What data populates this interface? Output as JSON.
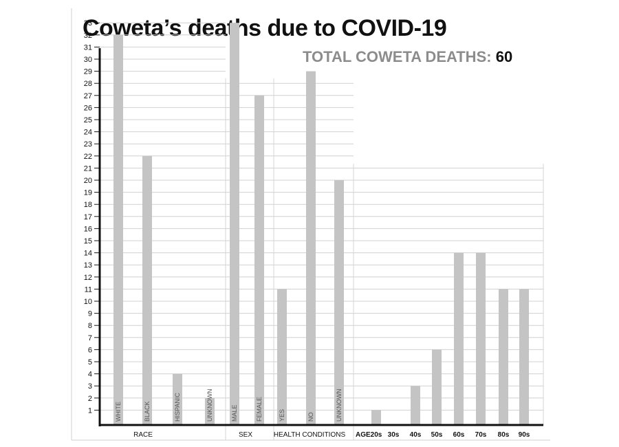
{
  "chart_data": {
    "type": "bar",
    "title": "Coweta’s deaths due to COVID-19",
    "annotation": {
      "label": "TOTAL COWETA DEATHS:",
      "value": "60"
    },
    "xlabel": "",
    "ylabel": "",
    "ylim": [
      0,
      33
    ],
    "yticks": [
      1,
      2,
      3,
      4,
      5,
      6,
      7,
      8,
      9,
      10,
      11,
      12,
      13,
      14,
      15,
      16,
      17,
      18,
      19,
      20,
      21,
      22,
      23,
      24,
      25,
      26,
      27,
      28,
      29,
      30,
      31,
      32,
      33
    ],
    "grid": true,
    "bar_color": "#c4c4c4",
    "groups": [
      {
        "label": "RACE",
        "bars": [
          {
            "label": "WHITE",
            "value": 32
          },
          {
            "label": "BLACK",
            "value": 22
          },
          {
            "label": "HISPANIC",
            "value": 4
          },
          {
            "label": "UNKNOWN",
            "value": 2
          }
        ]
      },
      {
        "label": "SEX",
        "bars": [
          {
            "label": "MALE",
            "value": 33
          },
          {
            "label": "FEMALE",
            "value": 27
          }
        ]
      },
      {
        "label": "HEALTH CONDITIONS",
        "bars": [
          {
            "label": "YES",
            "value": 11
          },
          {
            "label": "NO",
            "value": 29
          },
          {
            "label": "UNKNOWN",
            "value": 20
          }
        ]
      },
      {
        "label": "AGE",
        "bars": [
          {
            "label": "20s",
            "value": 1
          },
          {
            "label": "30s",
            "value": 0
          },
          {
            "label": "40s",
            "value": 3
          },
          {
            "label": "50s",
            "value": 6
          },
          {
            "label": "60s",
            "value": 14
          },
          {
            "label": "70s",
            "value": 14
          },
          {
            "label": "80s",
            "value": 11
          },
          {
            "label": "90s",
            "value": 11
          }
        ]
      }
    ]
  }
}
